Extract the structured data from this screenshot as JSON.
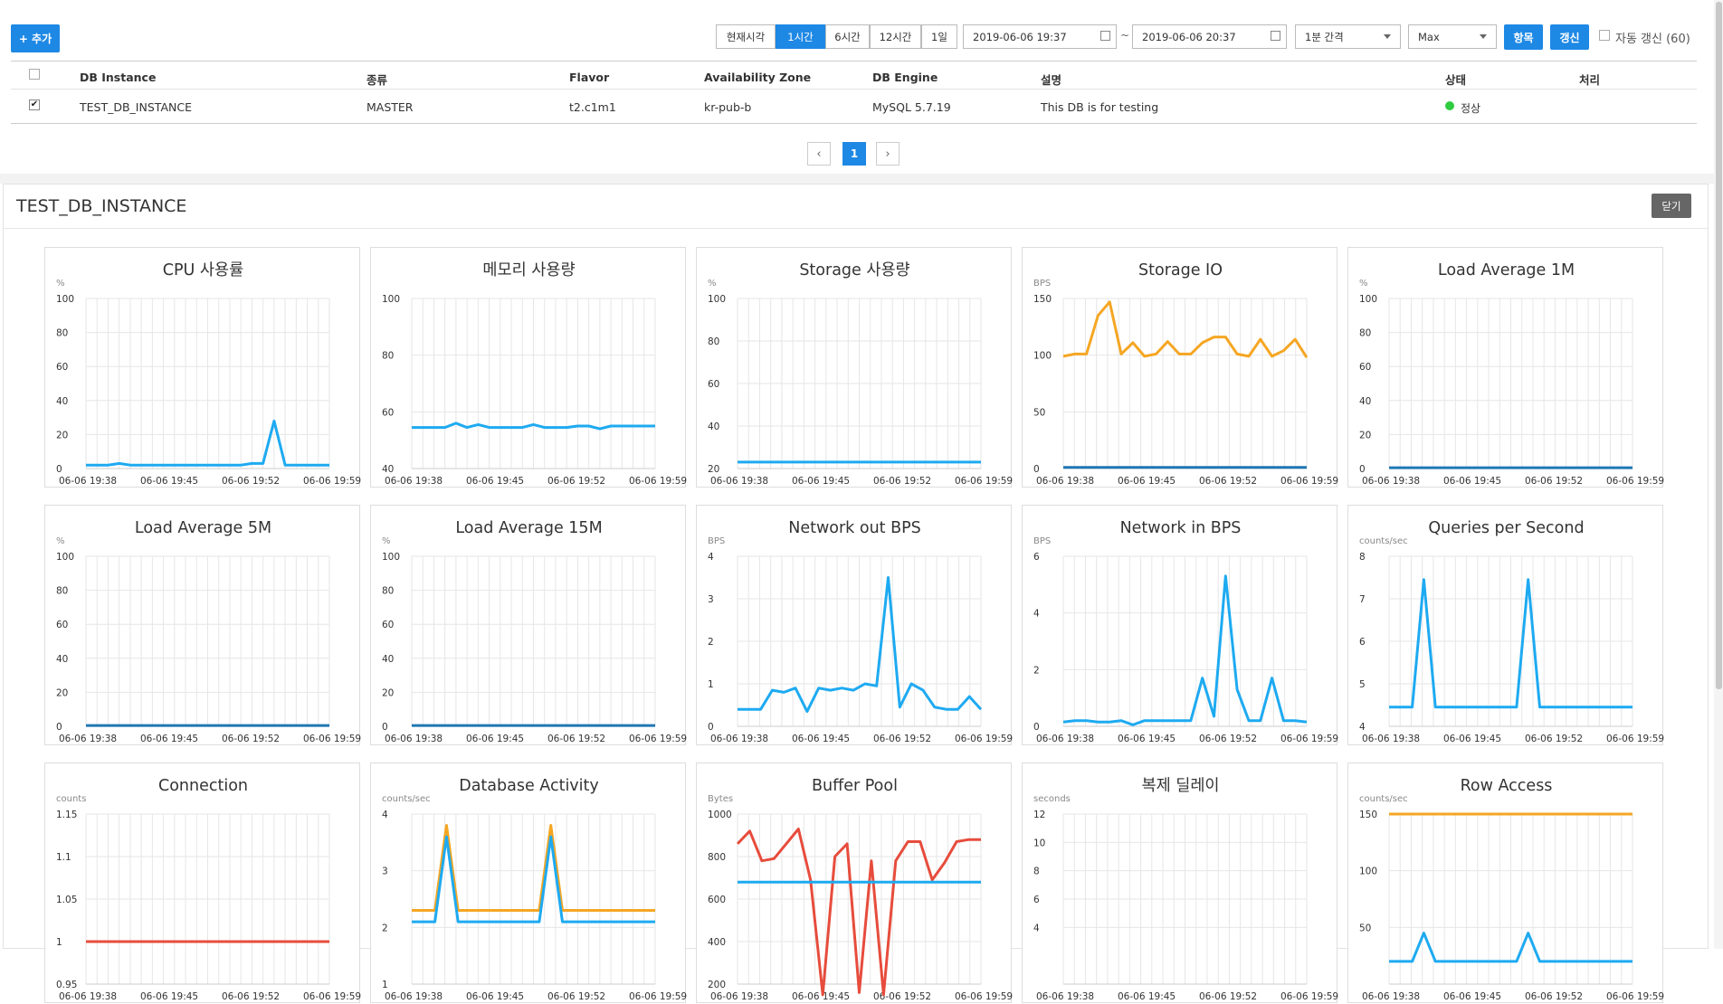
{
  "toolbar": {
    "add_label": "+ 추가",
    "time_buttons": [
      "현재시각",
      "1시간",
      "6시간",
      "12시간",
      "1일"
    ],
    "active_time": "1시간",
    "start_time": "2019-06-06 19:37",
    "tilde": "~",
    "end_time": "2019-06-06 20:37",
    "interval": "1분 간격",
    "aggregate": "Max",
    "items_label": "항목",
    "refresh_label": "갱신",
    "auto_refresh_label": "자동 갱신 (60)"
  },
  "table": {
    "headers": [
      "DB Instance",
      "종류",
      "Flavor",
      "Availability Zone",
      "DB Engine",
      "설명",
      "상태",
      "처리"
    ],
    "rows": [
      {
        "name": "TEST_DB_INSTANCE",
        "type": "MASTER",
        "flavor": "t2.c1m1",
        "zone": "kr-pub-b",
        "engine": "MySQL 5.7.19",
        "description": "This DB is for testing",
        "status": "정상",
        "status_color": "#2ecc40",
        "checked": true
      }
    ]
  },
  "pagination": {
    "prev_icon": "‹",
    "current": "1",
    "next_icon": "›"
  },
  "detail": {
    "title": "TEST_DB_INSTANCE",
    "close_label": "닫기"
  },
  "colors": {
    "accent": "#1e88e5",
    "series_blue": "#1eaaf1",
    "series_orange": "#f5a623",
    "series_red": "#e74c3c",
    "series_dark": "#1f77b4"
  },
  "chart_data": [
    {
      "type": "line",
      "title": "CPU 사용률",
      "unit": "%",
      "ylim": [
        0,
        100
      ],
      "yticks": [
        "0",
        "20",
        "40",
        "60",
        "80",
        "100"
      ],
      "xticks": [
        "06-06 19:38",
        "06-06 19:45",
        "06-06 19:52",
        "06-06 19:59"
      ],
      "series": [
        {
          "name": "cpu",
          "color": "#1eaaf1",
          "values": [
            2,
            2,
            2,
            3,
            2,
            2,
            2,
            2,
            2,
            2,
            2,
            2,
            2,
            2,
            2,
            3,
            3,
            28,
            2,
            2,
            2,
            2,
            2
          ]
        }
      ]
    },
    {
      "type": "line",
      "title": "메모리 사용량",
      "unit": "",
      "ylim": [
        40,
        100
      ],
      "yticks": [
        "40",
        "60",
        "80",
        "100"
      ],
      "xticks": [
        "06-06 19:38",
        "06-06 19:45",
        "06-06 19:52",
        "06-06 19:59"
      ],
      "series": [
        {
          "name": "memory",
          "color": "#1eaaf1",
          "values": [
            54.5,
            54.5,
            54.5,
            54.5,
            56,
            54.5,
            55.5,
            54.5,
            54.5,
            54.5,
            54.5,
            55.5,
            54.5,
            54.5,
            54.5,
            55,
            55,
            54,
            55,
            55,
            55,
            55,
            55
          ]
        }
      ]
    },
    {
      "type": "line",
      "title": "Storage 사용량",
      "unit": "%",
      "ylim": [
        20,
        100
      ],
      "yticks": [
        "20",
        "40",
        "60",
        "80",
        "100"
      ],
      "xticks": [
        "06-06 19:38",
        "06-06 19:45",
        "06-06 19:52",
        "06-06 19:59"
      ],
      "series": [
        {
          "name": "storage",
          "color": "#1eaaf1",
          "values": [
            23,
            23,
            23,
            23,
            23,
            23,
            23,
            23,
            23,
            23,
            23,
            23,
            23,
            23,
            23,
            23,
            23,
            23,
            23,
            23,
            23,
            23,
            23
          ]
        }
      ]
    },
    {
      "type": "line",
      "title": "Storage IO",
      "unit": "BPS",
      "ylim": [
        0,
        150
      ],
      "yticks": [
        "0",
        "50",
        "100",
        "150"
      ],
      "xticks": [
        "06-06 19:38",
        "06-06 19:45",
        "06-06 19:52",
        "06-06 19:59"
      ],
      "series": [
        {
          "name": "write",
          "color": "#f5a623",
          "values": [
            99,
            101,
            101,
            135,
            147,
            101,
            111,
            99,
            101,
            112,
            101,
            101,
            111,
            116,
            116,
            101,
            99,
            114,
            99,
            104,
            114,
            98
          ]
        },
        {
          "name": "read",
          "color": "#1f77b4",
          "values": [
            1,
            1,
            1,
            1,
            1,
            1,
            1,
            1,
            1,
            1,
            1,
            1,
            1,
            1,
            1,
            1,
            1,
            1,
            1,
            1,
            1,
            1
          ]
        }
      ]
    },
    {
      "type": "line",
      "title": "Load Average 1M",
      "unit": "%",
      "ylim": [
        0,
        100
      ],
      "yticks": [
        "0",
        "20",
        "40",
        "60",
        "80",
        "100"
      ],
      "xticks": [
        "06-06 19:38",
        "06-06 19:45",
        "06-06 19:52",
        "06-06 19:59"
      ],
      "series": [
        {
          "name": "load1",
          "color": "#1f77b4",
          "values": [
            0.5,
            0.5,
            0.5,
            0.5,
            0.5,
            0.5,
            0.5,
            0.5,
            0.5,
            0.5,
            0.5,
            0.5,
            0.5,
            0.5,
            0.5,
            0.5,
            0.5,
            0.5,
            0.5,
            0.5,
            0.5,
            0.5
          ]
        }
      ]
    },
    {
      "type": "line",
      "title": "Load Average 5M",
      "unit": "%",
      "ylim": [
        0,
        100
      ],
      "yticks": [
        "0",
        "20",
        "40",
        "60",
        "80",
        "100"
      ],
      "xticks": [
        "06-06 19:38",
        "06-06 19:45",
        "06-06 19:52",
        "06-06 19:59"
      ],
      "series": [
        {
          "name": "load5",
          "color": "#1f77b4",
          "values": [
            0.5,
            0.5,
            0.5,
            0.5,
            0.5,
            0.5,
            0.5,
            0.5,
            0.5,
            0.5,
            0.5,
            0.5,
            0.5,
            0.5,
            0.5,
            0.5,
            0.5,
            0.5,
            0.5,
            0.5,
            0.5,
            0.5
          ]
        }
      ]
    },
    {
      "type": "line",
      "title": "Load Average 15M",
      "unit": "%",
      "ylim": [
        0,
        100
      ],
      "yticks": [
        "0",
        "20",
        "40",
        "60",
        "80",
        "100"
      ],
      "xticks": [
        "06-06 19:38",
        "06-06 19:45",
        "06-06 19:52",
        "06-06 19:59"
      ],
      "series": [
        {
          "name": "load15",
          "color": "#1f77b4",
          "values": [
            0.5,
            0.5,
            0.5,
            0.5,
            0.5,
            0.5,
            0.5,
            0.5,
            0.5,
            0.5,
            0.5,
            0.5,
            0.5,
            0.5,
            0.5,
            0.5,
            0.5,
            0.5,
            0.5,
            0.5,
            0.5,
            0.5
          ]
        }
      ]
    },
    {
      "type": "line",
      "title": "Network out BPS",
      "unit": "BPS",
      "ylim": [
        0,
        4
      ],
      "yticks": [
        "0",
        "1",
        "2",
        "3",
        "4"
      ],
      "xticks": [
        "06-06 19:38",
        "06-06 19:45",
        "06-06 19:52",
        "06-06 19:59"
      ],
      "series": [
        {
          "name": "net_out",
          "color": "#1eaaf1",
          "values": [
            0.4,
            0.4,
            0.4,
            0.85,
            0.8,
            0.9,
            0.35,
            0.9,
            0.85,
            0.9,
            0.85,
            1.0,
            0.95,
            3.5,
            0.45,
            1.0,
            0.85,
            0.45,
            0.4,
            0.4,
            0.7,
            0.4
          ]
        }
      ]
    },
    {
      "type": "line",
      "title": "Network in BPS",
      "unit": "BPS",
      "ylim": [
        0,
        6
      ],
      "yticks": [
        "0",
        "2",
        "4",
        "6"
      ],
      "xticks": [
        "06-06 19:38",
        "06-06 19:45",
        "06-06 19:52",
        "06-06 19:59"
      ],
      "series": [
        {
          "name": "net_in",
          "color": "#1eaaf1",
          "values": [
            0.15,
            0.2,
            0.2,
            0.15,
            0.15,
            0.2,
            0.05,
            0.2,
            0.2,
            0.2,
            0.2,
            0.2,
            1.7,
            0.35,
            5.3,
            1.3,
            0.2,
            0.2,
            1.7,
            0.2,
            0.2,
            0.15
          ]
        }
      ]
    },
    {
      "type": "line",
      "title": "Queries per Second",
      "unit": "counts/sec",
      "ylim": [
        4,
        8
      ],
      "yticks": [
        "4",
        "5",
        "6",
        "7",
        "8"
      ],
      "xticks": [
        "06-06 19:38",
        "06-06 19:45",
        "06-06 19:52",
        "06-06 19:59"
      ],
      "series": [
        {
          "name": "qps",
          "color": "#1eaaf1",
          "values": [
            4.45,
            4.45,
            4.45,
            7.45,
            4.45,
            4.45,
            4.45,
            4.45,
            4.45,
            4.45,
            4.45,
            4.45,
            7.45,
            4.45,
            4.45,
            4.45,
            4.45,
            4.45,
            4.45,
            4.45,
            4.45,
            4.45
          ]
        }
      ]
    },
    {
      "type": "line",
      "title": "Connection",
      "unit": "counts",
      "ylim": [
        0.95,
        1.15
      ],
      "yticks": [
        "0.95",
        "1",
        "1.05",
        "1.1",
        "1.15"
      ],
      "xticks": [
        "06-06 19:38",
        "06-06 19:45",
        "06-06 19:52",
        "06-06 19:59"
      ],
      "series": [
        {
          "name": "connection",
          "color": "#e74c3c",
          "values": [
            1,
            1,
            1,
            1,
            1,
            1,
            1,
            1,
            1,
            1,
            1,
            1,
            1,
            1,
            1,
            1,
            1,
            1,
            1,
            1,
            1,
            1
          ]
        }
      ]
    },
    {
      "type": "line",
      "title": "Database Activity",
      "unit": "counts/sec",
      "ylim": [
        1,
        4
      ],
      "yticks": [
        "1",
        "2",
        "3",
        "4"
      ],
      "xticks": [
        "06-06 19:38",
        "06-06 19:45",
        "06-06 19:52",
        "06-06 19:59"
      ],
      "series": [
        {
          "name": "activity_a",
          "color": "#f5a623",
          "values": [
            2.3,
            2.3,
            2.3,
            3.8,
            2.3,
            2.3,
            2.3,
            2.3,
            2.3,
            2.3,
            2.3,
            2.3,
            3.8,
            2.3,
            2.3,
            2.3,
            2.3,
            2.3,
            2.3,
            2.3,
            2.3,
            2.3
          ]
        },
        {
          "name": "activity_b",
          "color": "#1eaaf1",
          "values": [
            2.1,
            2.1,
            2.1,
            3.6,
            2.1,
            2.1,
            2.1,
            2.1,
            2.1,
            2.1,
            2.1,
            2.1,
            3.6,
            2.1,
            2.1,
            2.1,
            2.1,
            2.1,
            2.1,
            2.1,
            2.1,
            2.1
          ]
        }
      ]
    },
    {
      "type": "line",
      "title": "Buffer Pool",
      "unit": "Bytes",
      "ylim": [
        200,
        1000
      ],
      "yticks": [
        "200",
        "400",
        "600",
        "800",
        "1000"
      ],
      "xticks": [
        "06-06 19:38",
        "06-06 19:45",
        "06-06 19:52",
        "06-06 19:59"
      ],
      "series": [
        {
          "name": "pool_total",
          "color": "#e74c3c",
          "values": [
            860,
            920,
            780,
            790,
            860,
            930,
            690,
            150,
            800,
            860,
            160,
            780,
            150,
            780,
            870,
            870,
            690,
            770,
            870,
            880,
            880
          ]
        },
        {
          "name": "pool_used",
          "color": "#1eaaf1",
          "values": [
            680,
            680,
            680,
            680,
            680,
            680,
            680,
            680,
            680,
            680,
            680,
            680,
            680,
            680,
            680,
            680,
            680,
            680,
            680,
            680,
            680
          ]
        }
      ]
    },
    {
      "type": "line",
      "title": "복제 딜레이",
      "unit": "seconds",
      "ylim": [
        0,
        12
      ],
      "yticks": [
        "4",
        "6",
        "8",
        "10",
        "12"
      ],
      "xticks": [
        "06-06 19:38",
        "06-06 19:45",
        "06-06 19:52",
        "06-06 19:59"
      ],
      "series": []
    },
    {
      "type": "line",
      "title": "Row Access",
      "unit": "counts/sec",
      "ylim": [
        0,
        150
      ],
      "yticks": [
        "50",
        "100",
        "150"
      ],
      "xticks": [
        "06-06 19:38",
        "06-06 19:45",
        "06-06 19:52",
        "06-06 19:59"
      ],
      "series": [
        {
          "name": "rows_read",
          "color": "#f5a623",
          "values": [
            150,
            150,
            150,
            150,
            150,
            150,
            150,
            150,
            150,
            150,
            150,
            150,
            150,
            150,
            150,
            150,
            150,
            150,
            150,
            150,
            150,
            150
          ]
        },
        {
          "name": "rows_changed",
          "color": "#1eaaf1",
          "values": [
            20,
            20,
            20,
            45,
            20,
            20,
            20,
            20,
            20,
            20,
            20,
            20,
            45,
            20,
            20,
            20,
            20,
            20,
            20,
            20,
            20,
            20
          ]
        }
      ]
    }
  ]
}
